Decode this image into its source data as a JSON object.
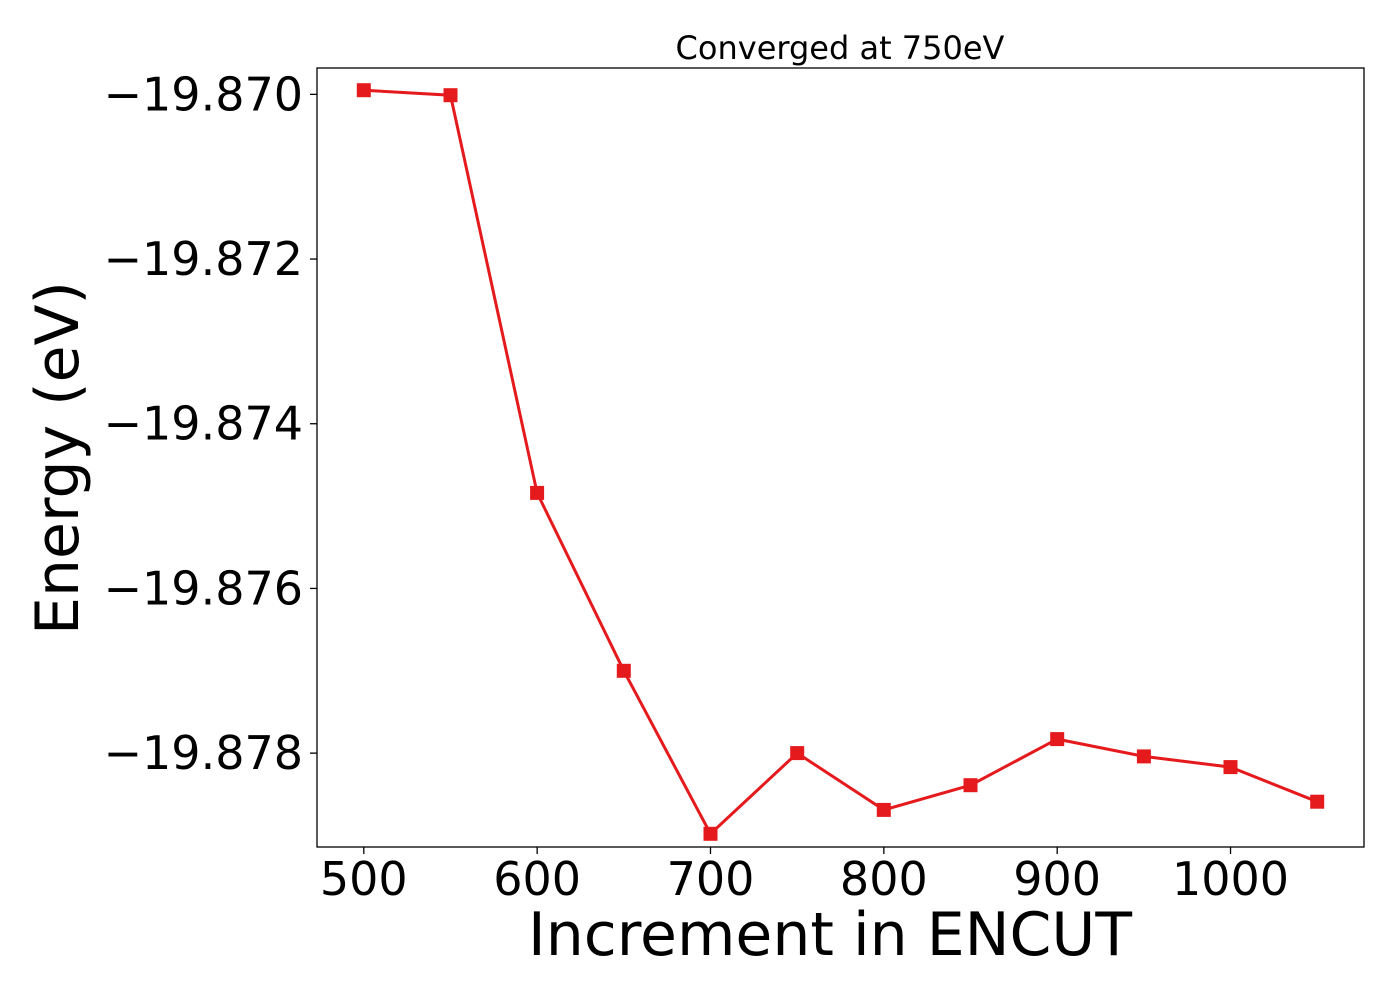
{
  "chart_data": {
    "type": "line",
    "title": "Converged at 750eV",
    "xlabel": "Increment in ENCUT",
    "ylabel": "Energy (eV)",
    "x": [
      500,
      550,
      600,
      650,
      700,
      750,
      800,
      850,
      900,
      950,
      1000,
      1050
    ],
    "series": [
      {
        "values": [
          -19.86995,
          -19.87001,
          -19.87484,
          -19.877,
          -19.87898,
          -19.878,
          -19.87869,
          -19.87839,
          -19.87783,
          -19.87804,
          -19.87817,
          -19.87859
        ],
        "color": "#e41a1c",
        "marker": "square"
      }
    ],
    "xticks": [
      500,
      600,
      700,
      800,
      900,
      1000
    ],
    "xtick_labels": [
      "500",
      "600",
      "700",
      "800",
      "900",
      "1000"
    ],
    "yticks": [
      -19.87,
      -19.872,
      -19.874,
      -19.876,
      -19.878
    ],
    "ytick_labels": [
      "−19.870",
      "−19.872",
      "−19.874",
      "−19.876",
      "−19.878"
    ],
    "xlim": [
      473,
      1077
    ],
    "ylim": [
      -19.87914,
      -19.86968
    ],
    "grid": false,
    "legend": "none"
  }
}
